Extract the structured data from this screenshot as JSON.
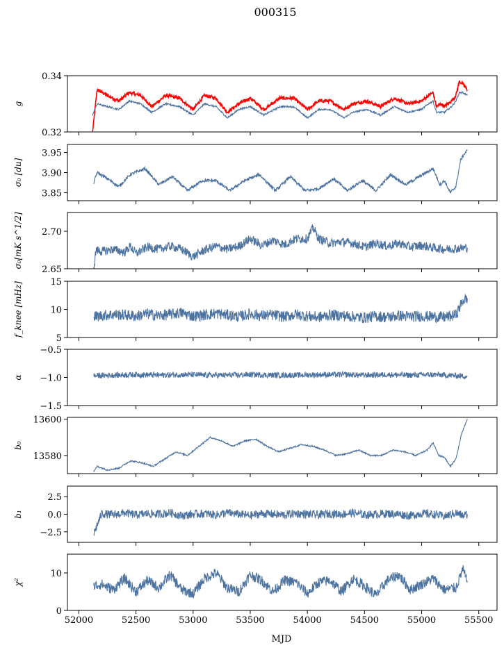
{
  "figure": {
    "title": "000315",
    "xlabel": "MJD",
    "xlim": [
      51900,
      55660
    ],
    "xticks": [
      52000,
      52500,
      53000,
      53500,
      54000,
      54500,
      55000,
      55500
    ],
    "line_color": "#4c72a0",
    "highlight_color": "#ff0000"
  },
  "chart_data": [
    {
      "type": "line",
      "ylabel": "g",
      "ylim": [
        0.32,
        0.34
      ],
      "yticks": [
        0.32,
        0.34
      ],
      "ytick_labels": [
        "0.32",
        "0.34"
      ],
      "series": [
        {
          "color": "#ff0000",
          "x": [
            52120,
            52160,
            52250,
            52350,
            52440,
            52540,
            52640,
            52760,
            52880,
            53000,
            53100,
            53200,
            53300,
            53400,
            53500,
            53620,
            53760,
            53880,
            54000,
            54100,
            54200,
            54320,
            54400,
            54520,
            54640,
            54760,
            54880,
            55000,
            55060,
            55100,
            55130,
            55170,
            55200,
            55260,
            55300,
            55330,
            55360,
            55400
          ],
          "y": [
            0.32,
            0.335,
            0.333,
            0.331,
            0.334,
            0.333,
            0.329,
            0.333,
            0.332,
            0.328,
            0.333,
            0.332,
            0.327,
            0.33,
            0.332,
            0.328,
            0.332,
            0.332,
            0.328,
            0.331,
            0.331,
            0.328,
            0.33,
            0.331,
            0.329,
            0.332,
            0.33,
            0.331,
            0.333,
            0.334,
            0.329,
            0.33,
            0.329,
            0.331,
            0.333,
            0.338,
            0.337,
            0.335
          ]
        },
        {
          "color": "#4c72a0",
          "x": [
            52120,
            52160,
            52250,
            52350,
            52440,
            52540,
            52640,
            52760,
            52880,
            53000,
            53100,
            53200,
            53300,
            53400,
            53500,
            53620,
            53760,
            53880,
            54000,
            54100,
            54200,
            54320,
            54400,
            54520,
            54640,
            54760,
            54880,
            55000,
            55060,
            55100,
            55130,
            55170,
            55200,
            55260,
            55300,
            55330,
            55360,
            55400
          ],
          "y": [
            0.326,
            0.33,
            0.329,
            0.328,
            0.331,
            0.33,
            0.327,
            0.33,
            0.329,
            0.326,
            0.33,
            0.329,
            0.325,
            0.328,
            0.329,
            0.326,
            0.329,
            0.329,
            0.325,
            0.328,
            0.328,
            0.325,
            0.327,
            0.328,
            0.326,
            0.329,
            0.327,
            0.328,
            0.33,
            0.331,
            0.327,
            0.327,
            0.327,
            0.329,
            0.331,
            0.334,
            0.334,
            0.333
          ]
        }
      ]
    },
    {
      "type": "line",
      "ylabel": "σ₀ [du]",
      "ylim": [
        3.83,
        3.97
      ],
      "yticks": [
        3.85,
        3.9,
        3.95
      ],
      "ytick_labels": [
        "3.85",
        "3.90",
        "3.95"
      ],
      "series": [
        {
          "color": "#4c72a0",
          "x": [
            52130,
            52160,
            52250,
            52350,
            52450,
            52580,
            52700,
            52820,
            52950,
            53080,
            53200,
            53320,
            53450,
            53580,
            53720,
            53850,
            53980,
            54100,
            54230,
            54350,
            54480,
            54600,
            54730,
            54860,
            54980,
            55100,
            55160,
            55200,
            55250,
            55300,
            55340,
            55370,
            55400
          ],
          "y": [
            3.875,
            3.9,
            3.885,
            3.865,
            3.895,
            3.91,
            3.87,
            3.89,
            3.855,
            3.88,
            3.88,
            3.855,
            3.88,
            3.895,
            3.855,
            3.89,
            3.855,
            3.86,
            3.885,
            3.855,
            3.88,
            3.855,
            3.895,
            3.87,
            3.89,
            3.91,
            3.87,
            3.88,
            3.85,
            3.865,
            3.93,
            3.945,
            3.955
          ]
        }
      ]
    },
    {
      "type": "line",
      "ylabel": "σ₀[mK s^1/2]",
      "ylim": [
        2.65,
        2.725
      ],
      "yticks": [
        2.65,
        2.7
      ],
      "ytick_labels": [
        "2.65",
        "2.70"
      ],
      "series": [
        {
          "color": "#4c72a0",
          "x": [
            52130,
            52150,
            52200,
            52300,
            52400,
            52450,
            52500,
            52600,
            52700,
            52800,
            52900,
            53000,
            53100,
            53200,
            53300,
            53400,
            53500,
            53600,
            53700,
            53800,
            53900,
            54000,
            54050,
            54100,
            54200,
            54300,
            54400,
            54500,
            54600,
            54700,
            54800,
            54900,
            55000,
            55100,
            55200,
            55300,
            55400
          ],
          "y": [
            2.65,
            2.675,
            2.673,
            2.676,
            2.672,
            2.68,
            2.67,
            2.679,
            2.676,
            2.68,
            2.676,
            2.666,
            2.675,
            2.68,
            2.676,
            2.68,
            2.69,
            2.681,
            2.688,
            2.682,
            2.69,
            2.69,
            2.705,
            2.69,
            2.684,
            2.686,
            2.684,
            2.679,
            2.684,
            2.68,
            2.684,
            2.679,
            2.681,
            2.678,
            2.676,
            2.677,
            2.678
          ]
        }
      ]
    },
    {
      "type": "line",
      "ylabel": "f_knee [mHz]",
      "ylim": [
        5,
        15
      ],
      "yticks": [
        5,
        10,
        15
      ],
      "ytick_labels": [
        "5",
        "10",
        "15"
      ],
      "series": [
        {
          "color": "#4c72a0",
          "x": [
            52130,
            52200,
            52300,
            52400,
            52500,
            52600,
            52700,
            52800,
            52900,
            53000,
            53100,
            53200,
            53300,
            53400,
            53500,
            53600,
            53700,
            53800,
            53900,
            54000,
            54100,
            54200,
            54300,
            54400,
            54500,
            54600,
            54700,
            54800,
            54900,
            55000,
            55100,
            55200,
            55300,
            55360,
            55400
          ],
          "y": [
            8.7,
            8.9,
            9.1,
            9.0,
            8.8,
            9.2,
            8.9,
            9.1,
            9.4,
            8.8,
            9.0,
            9.3,
            9.0,
            8.7,
            9.2,
            8.9,
            9.0,
            8.7,
            9.1,
            8.8,
            8.6,
            9.0,
            8.9,
            8.7,
            8.5,
            8.8,
            8.6,
            8.9,
            8.7,
            8.8,
            8.7,
            8.6,
            9.0,
            11.5,
            12.0
          ]
        }
      ]
    },
    {
      "type": "line",
      "ylabel": "α",
      "ylim": [
        -1.5,
        -0.5
      ],
      "yticks": [
        -1.5,
        -1.0,
        -0.5
      ],
      "ytick_labels": [
        "−1.5",
        "−1.0",
        "−0.5"
      ],
      "series": [
        {
          "color": "#4c72a0",
          "x": [
            52130,
            52300,
            52500,
            52700,
            52900,
            53100,
            53300,
            53500,
            53700,
            53900,
            54100,
            54300,
            54500,
            54700,
            54900,
            55100,
            55300,
            55400
          ],
          "y": [
            -0.97,
            -0.96,
            -0.95,
            -0.96,
            -0.95,
            -0.96,
            -0.96,
            -0.95,
            -0.96,
            -0.96,
            -0.95,
            -0.95,
            -0.96,
            -0.95,
            -0.96,
            -0.95,
            -0.97,
            -0.98
          ]
        }
      ]
    },
    {
      "type": "line",
      "ylabel": "b₀",
      "ylim": [
        13570,
        13601
      ],
      "yticks": [
        13580,
        13600
      ],
      "ytick_labels": [
        "13580",
        "13600"
      ],
      "series": [
        {
          "color": "#4c72a0",
          "x": [
            52130,
            52160,
            52250,
            52350,
            52450,
            52550,
            52650,
            52750,
            52850,
            52950,
            53050,
            53150,
            53250,
            53350,
            53450,
            53550,
            53650,
            53750,
            53850,
            53950,
            54050,
            54150,
            54250,
            54350,
            54450,
            54550,
            54650,
            54750,
            54850,
            54950,
            55050,
            55100,
            55150,
            55200,
            55250,
            55300,
            55350,
            55400
          ],
          "y": [
            13571,
            13574,
            13572,
            13573,
            13577,
            13576,
            13574,
            13578,
            13582,
            13580,
            13585,
            13590,
            13588,
            13585,
            13588,
            13589,
            13585,
            13582,
            13584,
            13586,
            13585,
            13583,
            13580,
            13581,
            13583,
            13580,
            13580,
            13583,
            13582,
            13580,
            13583,
            13587,
            13580,
            13579,
            13574,
            13578,
            13592,
            13600
          ]
        }
      ]
    },
    {
      "type": "line",
      "ylabel": "b₁",
      "ylim": [
        -4,
        4
      ],
      "yticks": [
        -2.5,
        0,
        2.5
      ],
      "ytick_labels": [
        "−2.5",
        "0.0",
        "2.5"
      ],
      "series": [
        {
          "color": "#4c72a0",
          "x": [
            52130,
            52200,
            52300,
            52400,
            52500,
            52600,
            52700,
            52800,
            52900,
            53000,
            53100,
            53200,
            53300,
            53400,
            53500,
            53600,
            53700,
            53800,
            53900,
            54000,
            54100,
            54200,
            54300,
            54400,
            54500,
            54600,
            54700,
            54800,
            54900,
            55000,
            55100,
            55200,
            55300,
            55360,
            55400
          ],
          "y": [
            -2.8,
            0.1,
            -0.1,
            0.2,
            -0.1,
            0.1,
            0.0,
            0.2,
            -0.2,
            0.0,
            0.1,
            -0.1,
            0.2,
            0.0,
            -0.2,
            0.1,
            0.0,
            -0.1,
            0.1,
            0.0,
            -0.1,
            0.1,
            0.0,
            0.2,
            -0.1,
            0.0,
            0.1,
            0.0,
            -0.2,
            0.1,
            0.0,
            -0.3,
            0.2,
            -0.2,
            0.0
          ]
        }
      ]
    },
    {
      "type": "line",
      "ylabel": "χ²",
      "ylim": [
        0,
        15
      ],
      "yticks": [
        0,
        10
      ],
      "ytick_labels": [
        "0",
        "10"
      ],
      "series": [
        {
          "color": "#4c72a0",
          "x": [
            52130,
            52200,
            52300,
            52400,
            52500,
            52600,
            52700,
            52800,
            52900,
            53000,
            53100,
            53200,
            53300,
            53400,
            53500,
            53600,
            53700,
            53800,
            53900,
            54000,
            54100,
            54200,
            54300,
            54400,
            54500,
            54600,
            54700,
            54800,
            54900,
            55000,
            55100,
            55200,
            55300,
            55360,
            55400
          ],
          "y": [
            6.5,
            7.0,
            5.5,
            8.5,
            5.0,
            8.0,
            6.0,
            9.5,
            5.5,
            4.5,
            8.5,
            10.0,
            6.0,
            5.0,
            9.5,
            8.0,
            5.0,
            8.0,
            7.5,
            4.5,
            7.5,
            8.0,
            5.0,
            8.5,
            6.5,
            4.0,
            8.0,
            9.5,
            5.5,
            7.0,
            8.5,
            5.5,
            6.0,
            11.0,
            7.5
          ]
        }
      ]
    }
  ]
}
